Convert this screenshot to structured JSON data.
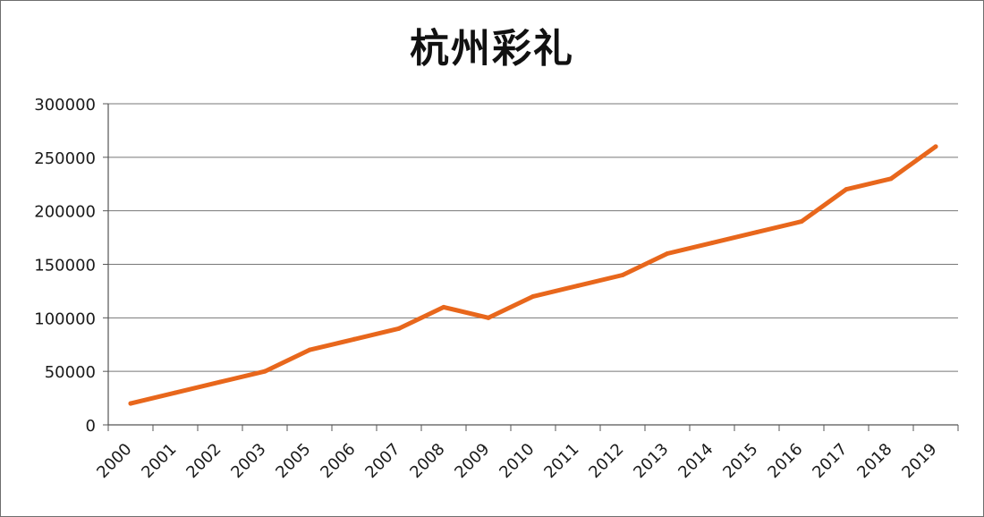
{
  "chart_data": {
    "type": "line",
    "title": "杭州彩礼",
    "xlabel": "",
    "ylabel": "",
    "categories": [
      "2000",
      "2001",
      "2002",
      "2003",
      "2005",
      "2006",
      "2007",
      "2008",
      "2009",
      "2010",
      "2011",
      "2012",
      "2013",
      "2014",
      "2015",
      "2016",
      "2017",
      "2018",
      "2019"
    ],
    "series": [
      {
        "values": [
          20000,
          30000,
          40000,
          50000,
          70000,
          80000,
          90000,
          110000,
          100000,
          120000,
          130000,
          140000,
          160000,
          170000,
          180000,
          190000,
          220000,
          230000,
          260000
        ]
      }
    ],
    "yticks": [
      0,
      50000,
      100000,
      150000,
      200000,
      250000,
      300000
    ],
    "ylim": [
      0,
      300000
    ],
    "grid": true,
    "legend": "none",
    "colors": {
      "line": "#e8671c",
      "grid": "#777777",
      "axis": "#555555"
    }
  }
}
